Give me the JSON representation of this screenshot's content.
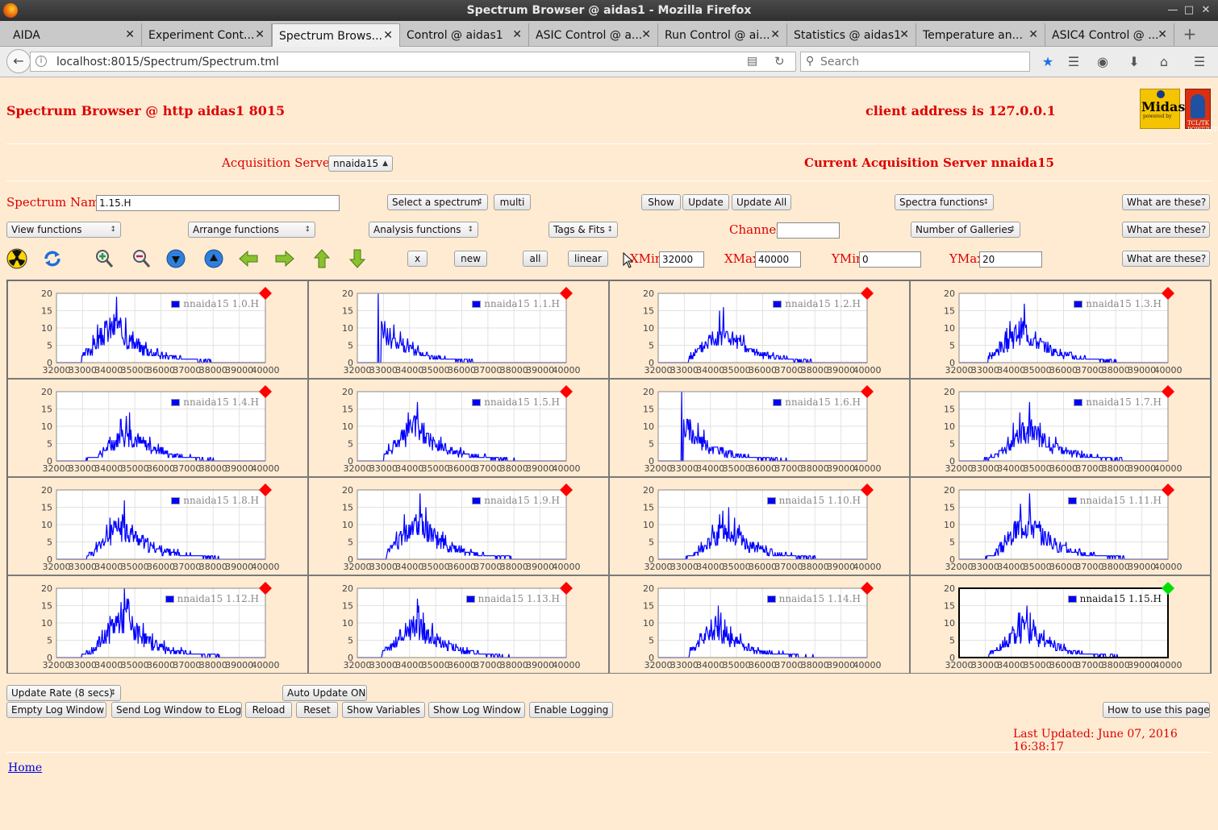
{
  "window": {
    "title": "Spectrum Browser @ aidas1 - Mozilla Firefox"
  },
  "tabs": [
    {
      "label": "AIDA",
      "active": false
    },
    {
      "label": "Experiment Cont...",
      "active": false
    },
    {
      "label": "Spectrum Brows...",
      "active": true
    },
    {
      "label": "Control @ aidas1",
      "active": false
    },
    {
      "label": "ASIC Control @ a...",
      "active": false
    },
    {
      "label": "Run Control @ ai...",
      "active": false
    },
    {
      "label": "Statistics @ aidas1",
      "active": false
    },
    {
      "label": "Temperature an...",
      "active": false
    },
    {
      "label": "ASIC4 Control @ ...",
      "active": false
    }
  ],
  "nav": {
    "url": "localhost:8015/Spectrum/Spectrum.tml",
    "search_placeholder": "Search"
  },
  "header": {
    "title": "Spectrum Browser @ http aidas1 8015",
    "client": "client address is 127.0.0.1",
    "logo_midas": "Midas",
    "logo_midas_sub": "powered by",
    "logo_tcl": "TCL/TK POWERED"
  },
  "acq": {
    "label": "Acquisition Servers",
    "server_select": "nnaida15",
    "current": "Current Acquisition Server nnaida15"
  },
  "row1": {
    "spectrum_name_label": "Spectrum Name:",
    "spectrum_name_value": "1.15.H",
    "select_spectrum": "Select a spectrum",
    "multi": "multi",
    "show": "Show",
    "update": "Update",
    "update_all": "Update All",
    "spectra_functions": "Spectra functions",
    "what": "What are these?"
  },
  "row2": {
    "view": "View functions",
    "arrange": "Arrange functions",
    "analysis": "Analysis functions",
    "tags": "Tags & Fits",
    "channel_label": "Channel:",
    "channel_value": "",
    "galleries": "Number of Galleries",
    "what": "What are these?"
  },
  "row3": {
    "x": "x",
    "new": "new",
    "all": "all",
    "linear": "linear",
    "xmin_label": "XMin",
    "xmin": "32000",
    "xmax_label": "XMax",
    "xmax": "40000",
    "ymin_label": "YMin",
    "ymin": "0",
    "ymax_label": "YMax",
    "ymax": "20",
    "what": "What are these?"
  },
  "colors": {
    "trace": "#0000ff",
    "bad": "#ff0000",
    "good": "#00e000",
    "label": "#dd0000"
  },
  "chart_data": [
    {
      "type": "line",
      "name": "nnaida15 1.0.H",
      "status": "red",
      "peak_x": 34300,
      "peak_y": 19,
      "xlim": [
        32000,
        40000
      ],
      "ylim": [
        0,
        20
      ],
      "xticks": [
        "32000",
        "33000",
        "34000",
        "35000",
        "36000",
        "37000",
        "38000",
        "39000",
        "40000"
      ],
      "yticks": [
        "0",
        "5",
        "10",
        "15",
        "20"
      ]
    },
    {
      "type": "line",
      "name": "nnaida15 1.1.H",
      "status": "red",
      "peak_x": 32800,
      "peak_y": 20,
      "xlim": [
        32000,
        40000
      ],
      "ylim": [
        0,
        20
      ],
      "xticks": [
        "32000",
        "33000",
        "34000",
        "35000",
        "36000",
        "37000",
        "38000",
        "39000",
        "40000"
      ],
      "yticks": [
        "0",
        "5",
        "10",
        "15",
        "20"
      ]
    },
    {
      "type": "line",
      "name": "nnaida15 1.2.H",
      "status": "red",
      "peak_x": 34500,
      "peak_y": 16,
      "xlim": [
        32000,
        40000
      ],
      "ylim": [
        0,
        20
      ],
      "xticks": [
        "32000",
        "33000",
        "34000",
        "35000",
        "36000",
        "37000",
        "38000",
        "39000",
        "40000"
      ],
      "yticks": [
        "0",
        "5",
        "10",
        "15",
        "20"
      ]
    },
    {
      "type": "line",
      "name": "nnaida15 1.3.H",
      "status": "red",
      "peak_x": 34500,
      "peak_y": 17,
      "xlim": [
        32000,
        40000
      ],
      "ylim": [
        0,
        20
      ],
      "xticks": [
        "32000",
        "33000",
        "34000",
        "35000",
        "36000",
        "37000",
        "38000",
        "39000",
        "40000"
      ],
      "yticks": [
        "0",
        "5",
        "10",
        "15",
        "20"
      ]
    },
    {
      "type": "line",
      "name": "nnaida15 1.4.H",
      "status": "red",
      "peak_x": 34800,
      "peak_y": 14,
      "xlim": [
        32000,
        40000
      ],
      "ylim": [
        0,
        20
      ],
      "xticks": [
        "32000",
        "33000",
        "34000",
        "35000",
        "36000",
        "37000",
        "38000",
        "39000",
        "40000"
      ],
      "yticks": [
        "0",
        "5",
        "10",
        "15",
        "20"
      ]
    },
    {
      "type": "line",
      "name": "nnaida15 1.5.H",
      "status": "red",
      "peak_x": 34300,
      "peak_y": 17,
      "xlim": [
        32000,
        40000
      ],
      "ylim": [
        0,
        20
      ],
      "xticks": [
        "32000",
        "33000",
        "34000",
        "35000",
        "36000",
        "37000",
        "38000",
        "39000",
        "40000"
      ],
      "yticks": [
        "0",
        "5",
        "10",
        "15",
        "20"
      ]
    },
    {
      "type": "line",
      "name": "nnaida15 1.6.H",
      "status": "red",
      "peak_x": 32900,
      "peak_y": 20,
      "xlim": [
        32000,
        40000
      ],
      "ylim": [
        0,
        20
      ],
      "xticks": [
        "32000",
        "33000",
        "34000",
        "35000",
        "36000",
        "37000",
        "38000",
        "39000",
        "40000"
      ],
      "yticks": [
        "0",
        "5",
        "10",
        "15",
        "20"
      ]
    },
    {
      "type": "line",
      "name": "nnaida15 1.7.H",
      "status": "red",
      "peak_x": 34700,
      "peak_y": 17,
      "xlim": [
        32000,
        40000
      ],
      "ylim": [
        0,
        20
      ],
      "xticks": [
        "32000",
        "33000",
        "34000",
        "35000",
        "36000",
        "37000",
        "38000",
        "39000",
        "40000"
      ],
      "yticks": [
        "0",
        "5",
        "10",
        "15",
        "20"
      ]
    },
    {
      "type": "line",
      "name": "nnaida15 1.8.H",
      "status": "red",
      "peak_x": 34600,
      "peak_y": 17,
      "xlim": [
        32000,
        40000
      ],
      "ylim": [
        0,
        20
      ],
      "xticks": [
        "32000",
        "33000",
        "34000",
        "35000",
        "36000",
        "37000",
        "38000",
        "39000",
        "40000"
      ],
      "yticks": [
        "0",
        "5",
        "10",
        "15",
        "20"
      ]
    },
    {
      "type": "line",
      "name": "nnaida15 1.9.H",
      "status": "red",
      "peak_x": 34400,
      "peak_y": 19,
      "xlim": [
        32000,
        40000
      ],
      "ylim": [
        0,
        20
      ],
      "xticks": [
        "32000",
        "33000",
        "34000",
        "35000",
        "36000",
        "37000",
        "38000",
        "39000",
        "40000"
      ],
      "yticks": [
        "0",
        "5",
        "10",
        "15",
        "20"
      ]
    },
    {
      "type": "line",
      "name": "nnaida15 1.10.H",
      "status": "red",
      "peak_x": 34700,
      "peak_y": 15,
      "xlim": [
        32000,
        40000
      ],
      "ylim": [
        0,
        20
      ],
      "xticks": [
        "32000",
        "33000",
        "34000",
        "35000",
        "36000",
        "37000",
        "38000",
        "39000",
        "40000"
      ],
      "yticks": [
        "0",
        "5",
        "10",
        "15",
        "20"
      ]
    },
    {
      "type": "line",
      "name": "nnaida15 1.11.H",
      "status": "red",
      "peak_x": 34700,
      "peak_y": 19,
      "xlim": [
        32000,
        40000
      ],
      "ylim": [
        0,
        20
      ],
      "xticks": [
        "32000",
        "33000",
        "34000",
        "35000",
        "36000",
        "37000",
        "38000",
        "39000",
        "40000"
      ],
      "yticks": [
        "0",
        "5",
        "10",
        "15",
        "20"
      ]
    },
    {
      "type": "line",
      "name": "nnaida15 1.12.H",
      "status": "red",
      "peak_x": 34600,
      "peak_y": 20,
      "xlim": [
        32000,
        40000
      ],
      "ylim": [
        0,
        20
      ],
      "xticks": [
        "32000",
        "33000",
        "34000",
        "35000",
        "36000",
        "37000",
        "38000",
        "39000",
        "40000"
      ],
      "yticks": [
        "0",
        "5",
        "10",
        "15",
        "20"
      ]
    },
    {
      "type": "line",
      "name": "nnaida15 1.13.H",
      "status": "red",
      "peak_x": 34300,
      "peak_y": 17,
      "xlim": [
        32000,
        40000
      ],
      "ylim": [
        0,
        20
      ],
      "xticks": [
        "32000",
        "33000",
        "34000",
        "35000",
        "36000",
        "37000",
        "38000",
        "39000",
        "40000"
      ],
      "yticks": [
        "0",
        "5",
        "10",
        "15",
        "20"
      ]
    },
    {
      "type": "line",
      "name": "nnaida15 1.14.H",
      "status": "red",
      "peak_x": 34300,
      "peak_y": 15,
      "xlim": [
        32000,
        40000
      ],
      "ylim": [
        0,
        20
      ],
      "xticks": [
        "32000",
        "33000",
        "34000",
        "35000",
        "36000",
        "37000",
        "38000",
        "39000",
        "40000"
      ],
      "yticks": [
        "0",
        "5",
        "10",
        "15",
        "20"
      ]
    },
    {
      "type": "line",
      "name": "nnaida15 1.15.H",
      "status": "green",
      "peak_x": 34600,
      "peak_y": 15,
      "xlim": [
        32000,
        40000
      ],
      "ylim": [
        0,
        20
      ],
      "xticks": [
        "32000",
        "33000",
        "34000",
        "35000",
        "36000",
        "37000",
        "38000",
        "39000",
        "40000"
      ],
      "yticks": [
        "0",
        "5",
        "10",
        "15",
        "20"
      ]
    }
  ],
  "footer": {
    "update_rate": "Update Rate (8 secs)",
    "auto_update": "Auto Update ON",
    "empty_log": "Empty Log Window",
    "send_log": "Send Log Window to ELog",
    "reload": "Reload",
    "reset": "Reset",
    "show_vars": "Show Variables",
    "show_log": "Show Log Window",
    "enable_logging": "Enable Logging",
    "how_to": "How to use this page",
    "last_updated": "Last Updated: June 07, 2016 16:38:17",
    "home": "Home"
  }
}
